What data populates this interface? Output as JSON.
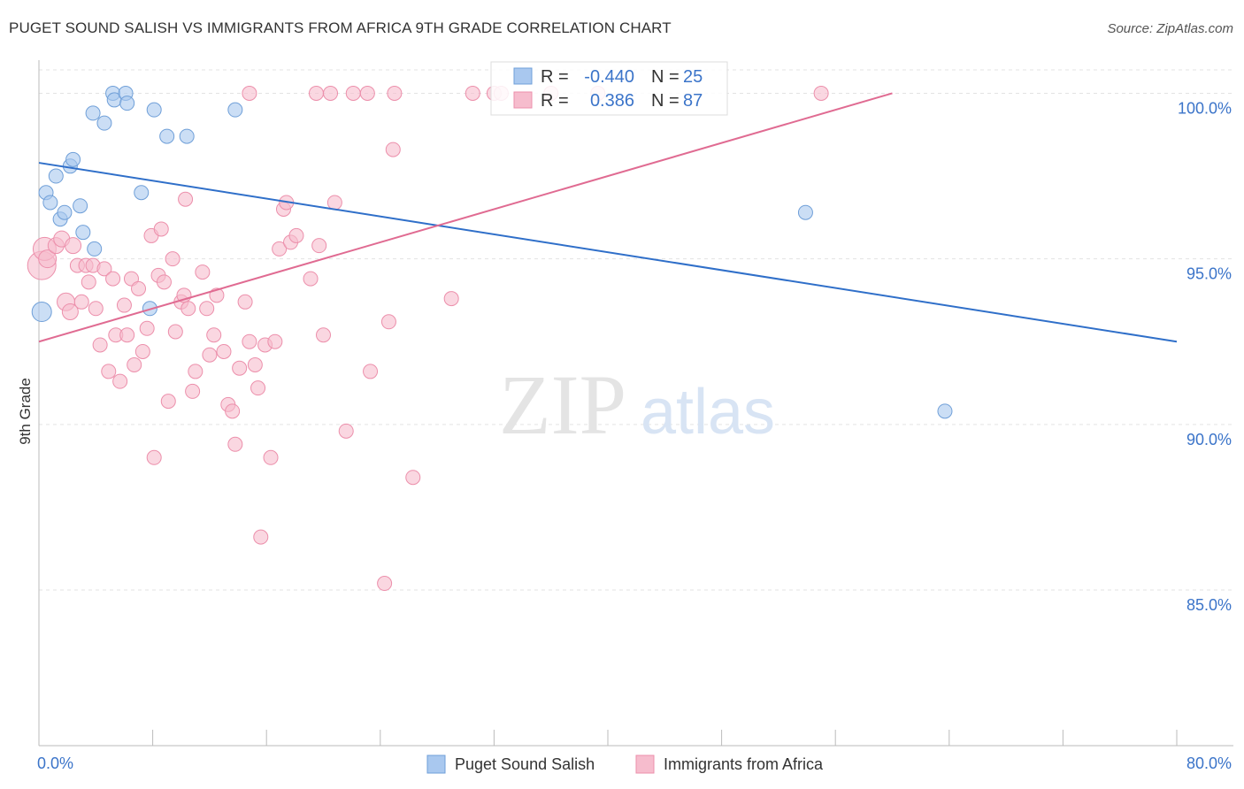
{
  "title": "PUGET SOUND SALISH VS IMMIGRANTS FROM AFRICA 9TH GRADE CORRELATION CHART",
  "source": "Source: ZipAtlas.com",
  "watermark": {
    "zip": "ZIP",
    "atlas": "atlas"
  },
  "colors": {
    "blue_fill": "#a9c8ef",
    "blue_stroke": "#6f9fd8",
    "blue_line": "#2f6fc9",
    "pink_fill": "#f6bccd",
    "pink_stroke": "#ec8fab",
    "pink_line": "#e06b92",
    "axis_text": "#3b74c9",
    "grid": "#e3e3e3"
  },
  "stats_legend": [
    {
      "r_label": "R =",
      "r_value": "-0.440",
      "n_label": "N =",
      "n_value": "25"
    },
    {
      "r_label": "R =",
      "r_value": "0.386",
      "n_label": "N =",
      "n_value": "87"
    }
  ],
  "chart_data": {
    "type": "scatter",
    "title": "PUGET SOUND SALISH VS IMMIGRANTS FROM AFRICA 9TH GRADE CORRELATION CHART",
    "xlabel": "",
    "ylabel": "9th Grade",
    "xlim": [
      0,
      80
    ],
    "ylim": [
      80.3,
      101.0
    ],
    "x_tick_labels": [
      "0.0%",
      "80.0%"
    ],
    "y_ticks": [
      85,
      90,
      95,
      100
    ],
    "y_tick_labels": [
      "85.0%",
      "90.0%",
      "95.0%",
      "100.0%"
    ],
    "grid": true,
    "legend_position": "bottom",
    "series": [
      {
        "name": "Puget Sound Salish",
        "color": "#a9c8ef",
        "trend": {
          "x": [
            0,
            80
          ],
          "y": [
            97.9,
            92.5
          ]
        },
        "points": [
          {
            "x": 0.2,
            "y": 93.4,
            "r": 11
          },
          {
            "x": 0.5,
            "y": 97.0,
            "r": 8
          },
          {
            "x": 0.8,
            "y": 96.7,
            "r": 8
          },
          {
            "x": 1.2,
            "y": 97.5,
            "r": 8
          },
          {
            "x": 1.5,
            "y": 96.2,
            "r": 8
          },
          {
            "x": 1.8,
            "y": 96.4,
            "r": 8
          },
          {
            "x": 2.2,
            "y": 97.8,
            "r": 8
          },
          {
            "x": 2.4,
            "y": 98.0,
            "r": 8
          },
          {
            "x": 2.9,
            "y": 96.6,
            "r": 8
          },
          {
            "x": 3.1,
            "y": 95.8,
            "r": 8
          },
          {
            "x": 3.9,
            "y": 95.3,
            "r": 8
          },
          {
            "x": 3.8,
            "y": 99.4,
            "r": 8
          },
          {
            "x": 4.6,
            "y": 99.1,
            "r": 8
          },
          {
            "x": 5.2,
            "y": 100.0,
            "r": 8
          },
          {
            "x": 5.3,
            "y": 99.8,
            "r": 8
          },
          {
            "x": 6.1,
            "y": 100.0,
            "r": 8
          },
          {
            "x": 6.2,
            "y": 99.7,
            "r": 8
          },
          {
            "x": 7.2,
            "y": 97.0,
            "r": 8
          },
          {
            "x": 7.8,
            "y": 93.5,
            "r": 8
          },
          {
            "x": 8.1,
            "y": 99.5,
            "r": 8
          },
          {
            "x": 9.0,
            "y": 98.7,
            "r": 8
          },
          {
            "x": 10.4,
            "y": 98.7,
            "r": 8
          },
          {
            "x": 13.8,
            "y": 99.5,
            "r": 8
          },
          {
            "x": 53.9,
            "y": 96.4,
            "r": 8
          },
          {
            "x": 63.7,
            "y": 90.4,
            "r": 8
          }
        ]
      },
      {
        "name": "Immigrants from Africa",
        "color": "#f6bccd",
        "trend": {
          "x": [
            0,
            60
          ],
          "y": [
            92.5,
            100.0
          ]
        },
        "points": [
          {
            "x": 0.2,
            "y": 94.8,
            "r": 16
          },
          {
            "x": 0.4,
            "y": 95.3,
            "r": 13
          },
          {
            "x": 0.6,
            "y": 95.0,
            "r": 10
          },
          {
            "x": 1.2,
            "y": 95.4,
            "r": 9
          },
          {
            "x": 1.6,
            "y": 95.6,
            "r": 9
          },
          {
            "x": 1.9,
            "y": 93.7,
            "r": 10
          },
          {
            "x": 2.2,
            "y": 93.4,
            "r": 9
          },
          {
            "x": 2.4,
            "y": 95.4,
            "r": 9
          },
          {
            "x": 2.7,
            "y": 94.8,
            "r": 8
          },
          {
            "x": 3.0,
            "y": 93.7,
            "r": 8
          },
          {
            "x": 3.3,
            "y": 94.8,
            "r": 8
          },
          {
            "x": 3.5,
            "y": 94.3,
            "r": 8
          },
          {
            "x": 3.8,
            "y": 94.8,
            "r": 8
          },
          {
            "x": 4.0,
            "y": 93.5,
            "r": 8
          },
          {
            "x": 4.3,
            "y": 92.4,
            "r": 8
          },
          {
            "x": 4.6,
            "y": 94.7,
            "r": 8
          },
          {
            "x": 4.9,
            "y": 91.6,
            "r": 8
          },
          {
            "x": 5.2,
            "y": 94.4,
            "r": 8
          },
          {
            "x": 5.4,
            "y": 92.7,
            "r": 8
          },
          {
            "x": 5.7,
            "y": 91.3,
            "r": 8
          },
          {
            "x": 6.0,
            "y": 93.6,
            "r": 8
          },
          {
            "x": 6.2,
            "y": 92.7,
            "r": 8
          },
          {
            "x": 6.5,
            "y": 94.4,
            "r": 8
          },
          {
            "x": 6.7,
            "y": 91.8,
            "r": 8
          },
          {
            "x": 7.0,
            "y": 94.1,
            "r": 8
          },
          {
            "x": 7.3,
            "y": 92.2,
            "r": 8
          },
          {
            "x": 7.6,
            "y": 92.9,
            "r": 8
          },
          {
            "x": 7.9,
            "y": 95.7,
            "r": 8
          },
          {
            "x": 8.1,
            "y": 89.0,
            "r": 8
          },
          {
            "x": 8.4,
            "y": 94.5,
            "r": 8
          },
          {
            "x": 8.6,
            "y": 95.9,
            "r": 8
          },
          {
            "x": 8.8,
            "y": 94.3,
            "r": 8
          },
          {
            "x": 9.1,
            "y": 90.7,
            "r": 8
          },
          {
            "x": 9.4,
            "y": 95.0,
            "r": 8
          },
          {
            "x": 9.6,
            "y": 92.8,
            "r": 8
          },
          {
            "x": 10.0,
            "y": 93.7,
            "r": 8
          },
          {
            "x": 10.2,
            "y": 93.9,
            "r": 8
          },
          {
            "x": 10.5,
            "y": 93.5,
            "r": 8
          },
          {
            "x": 10.8,
            "y": 91.0,
            "r": 8
          },
          {
            "x": 11.0,
            "y": 91.6,
            "r": 8
          },
          {
            "x": 11.5,
            "y": 94.6,
            "r": 8
          },
          {
            "x": 11.8,
            "y": 93.5,
            "r": 8
          },
          {
            "x": 12.0,
            "y": 92.1,
            "r": 8
          },
          {
            "x": 12.3,
            "y": 92.7,
            "r": 8
          },
          {
            "x": 12.5,
            "y": 93.9,
            "r": 8
          },
          {
            "x": 13.0,
            "y": 92.2,
            "r": 8
          },
          {
            "x": 13.3,
            "y": 90.6,
            "r": 8
          },
          {
            "x": 13.6,
            "y": 90.4,
            "r": 8
          },
          {
            "x": 13.8,
            "y": 89.4,
            "r": 8
          },
          {
            "x": 14.1,
            "y": 91.7,
            "r": 8
          },
          {
            "x": 14.5,
            "y": 93.7,
            "r": 8
          },
          {
            "x": 14.8,
            "y": 92.5,
            "r": 8
          },
          {
            "x": 15.2,
            "y": 91.8,
            "r": 8
          },
          {
            "x": 15.4,
            "y": 91.1,
            "r": 8
          },
          {
            "x": 15.6,
            "y": 86.6,
            "r": 8
          },
          {
            "x": 15.9,
            "y": 92.4,
            "r": 8
          },
          {
            "x": 16.3,
            "y": 89.0,
            "r": 8
          },
          {
            "x": 16.6,
            "y": 92.5,
            "r": 8
          },
          {
            "x": 16.9,
            "y": 95.3,
            "r": 8
          },
          {
            "x": 17.2,
            "y": 96.5,
            "r": 8
          },
          {
            "x": 17.4,
            "y": 96.7,
            "r": 8
          },
          {
            "x": 17.7,
            "y": 95.5,
            "r": 8
          },
          {
            "x": 18.1,
            "y": 95.7,
            "r": 8
          },
          {
            "x": 19.1,
            "y": 94.4,
            "r": 8
          },
          {
            "x": 19.5,
            "y": 100.0,
            "r": 8
          },
          {
            "x": 19.7,
            "y": 95.4,
            "r": 8
          },
          {
            "x": 20.0,
            "y": 92.7,
            "r": 8
          },
          {
            "x": 20.5,
            "y": 100.0,
            "r": 8
          },
          {
            "x": 20.8,
            "y": 96.7,
            "r": 8
          },
          {
            "x": 21.6,
            "y": 89.8,
            "r": 8
          },
          {
            "x": 22.1,
            "y": 100.0,
            "r": 8
          },
          {
            "x": 23.1,
            "y": 100.0,
            "r": 8
          },
          {
            "x": 23.3,
            "y": 91.6,
            "r": 8
          },
          {
            "x": 24.3,
            "y": 85.2,
            "r": 8
          },
          {
            "x": 24.6,
            "y": 93.1,
            "r": 8
          },
          {
            "x": 24.9,
            "y": 98.3,
            "r": 8
          },
          {
            "x": 25.0,
            "y": 100.0,
            "r": 8
          },
          {
            "x": 26.3,
            "y": 88.4,
            "r": 8
          },
          {
            "x": 29.0,
            "y": 93.8,
            "r": 8
          },
          {
            "x": 30.5,
            "y": 100.0,
            "r": 8
          },
          {
            "x": 32.0,
            "y": 100.0,
            "r": 8
          },
          {
            "x": 32.5,
            "y": 100.0,
            "r": 8
          },
          {
            "x": 36.0,
            "y": 100.0,
            "r": 8
          },
          {
            "x": 39.3,
            "y": 100.0,
            "r": 8
          },
          {
            "x": 14.8,
            "y": 100.0,
            "r": 8
          },
          {
            "x": 55.0,
            "y": 100.0,
            "r": 8
          },
          {
            "x": 10.3,
            "y": 96.8,
            "r": 8
          }
        ]
      }
    ]
  },
  "bottom_legend": [
    {
      "label": "Puget Sound Salish"
    },
    {
      "label": "Immigrants from Africa"
    }
  ]
}
